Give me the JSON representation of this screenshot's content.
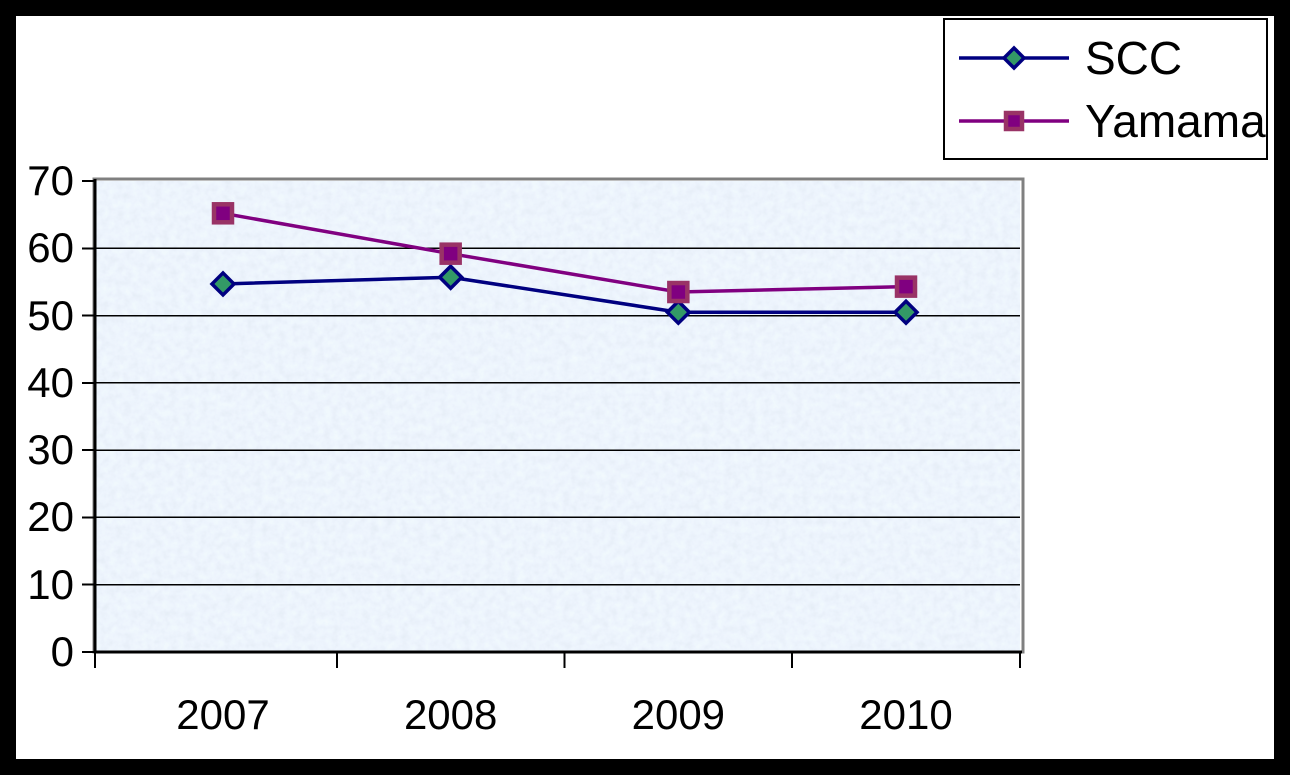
{
  "window": {
    "background": "#ffffff",
    "frame_border_color": "#000000"
  },
  "legend": {
    "position": "top-right",
    "border_color": "#000000",
    "background": "#ffffff"
  },
  "chart_data": {
    "type": "line",
    "title": "",
    "xlabel": "",
    "ylabel": "",
    "categories": [
      "2007",
      "2008",
      "2009",
      "2010"
    ],
    "series": [
      {
        "name": "SCC",
        "values": [
          54.7,
          55.7,
          50.5,
          50.5
        ],
        "line_color": "#000080",
        "marker": "diamond",
        "marker_fill": "#339966",
        "marker_border": "#000080"
      },
      {
        "name": "Yamama",
        "values": [
          65.2,
          59.2,
          53.5,
          54.3
        ],
        "line_color": "#800080",
        "marker": "square",
        "marker_fill": "#800080",
        "marker_border": "#993366"
      }
    ],
    "ylim": [
      0,
      70
    ],
    "y_ticks": [
      0,
      10,
      20,
      30,
      40,
      50,
      60,
      70
    ],
    "grid": "horizontal",
    "gridline_color": "#000000",
    "axis_color": "#000000",
    "plot_border_color": "#808080",
    "plot_bg_base": "#dce6f4",
    "plot_bg_texture": "blue-tissue-paper",
    "legend_position": "top-right"
  }
}
